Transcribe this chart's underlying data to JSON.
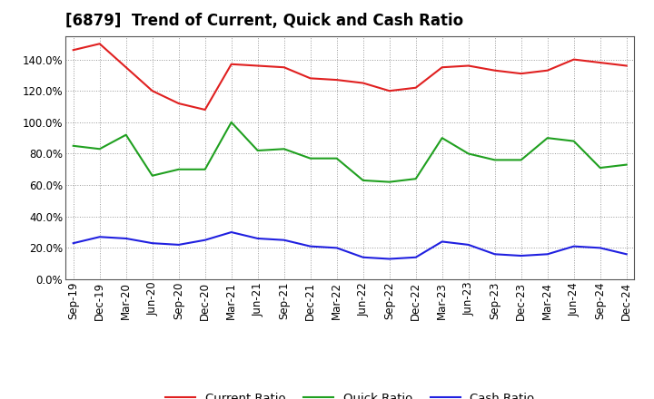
{
  "title": "[6879]  Trend of Current, Quick and Cash Ratio",
  "labels": [
    "Sep-19",
    "Dec-19",
    "Mar-20",
    "Jun-20",
    "Sep-20",
    "Dec-20",
    "Mar-21",
    "Jun-21",
    "Sep-21",
    "Dec-21",
    "Mar-22",
    "Jun-22",
    "Sep-22",
    "Dec-22",
    "Mar-23",
    "Jun-23",
    "Sep-23",
    "Dec-23",
    "Mar-24",
    "Jun-24",
    "Sep-24",
    "Dec-24"
  ],
  "current_ratio": [
    146.0,
    150.0,
    135.0,
    120.0,
    112.0,
    108.0,
    137.0,
    136.0,
    135.0,
    128.0,
    127.0,
    125.0,
    120.0,
    122.0,
    135.0,
    136.0,
    133.0,
    131.0,
    133.0,
    140.0,
    138.0,
    136.0
  ],
  "quick_ratio": [
    85.0,
    83.0,
    92.0,
    66.0,
    70.0,
    70.0,
    100.0,
    82.0,
    83.0,
    77.0,
    77.0,
    63.0,
    62.0,
    64.0,
    90.0,
    80.0,
    76.0,
    76.0,
    90.0,
    88.0,
    71.0,
    73.0
  ],
  "cash_ratio": [
    23.0,
    27.0,
    26.0,
    23.0,
    22.0,
    25.0,
    30.0,
    26.0,
    25.0,
    21.0,
    20.0,
    14.0,
    13.0,
    14.0,
    24.0,
    22.0,
    16.0,
    15.0,
    16.0,
    21.0,
    20.0,
    16.0
  ],
  "current_color": "#e02020",
  "quick_color": "#20a020",
  "cash_color": "#2020e0",
  "ylim": [
    0,
    155
  ],
  "yticks": [
    0,
    20,
    40,
    60,
    80,
    100,
    120,
    140
  ],
  "background_color": "#ffffff",
  "grid_color": "#999999",
  "title_fontsize": 12,
  "axis_fontsize": 8.5,
  "legend_fontsize": 9.5
}
